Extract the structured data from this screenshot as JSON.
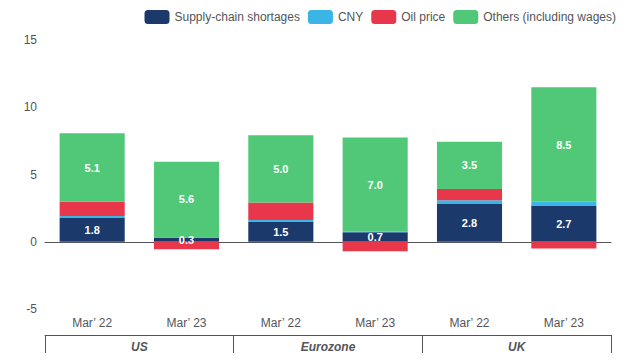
{
  "chart_data": {
    "type": "bar",
    "stacked": true,
    "categories": [
      "Mar’ 22",
      "Mar’ 23",
      "Mar’ 22",
      "Mar’ 23",
      "Mar’ 22",
      "Mar’ 23"
    ],
    "group_labels": [
      "US",
      "Eurozone",
      "UK"
    ],
    "series": [
      {
        "name": "Supply-chain shortages",
        "color": "#1b3a6b",
        "values": [
          1.8,
          0.3,
          1.5,
          0.7,
          2.8,
          2.7
        ],
        "data_labels": true
      },
      {
        "name": "CNY",
        "color": "#3ab5e5",
        "values": [
          0.12,
          0.05,
          0.12,
          0.05,
          0.28,
          0.28
        ]
      },
      {
        "name": "Oil price",
        "color": "#e8374a",
        "values": [
          1.05,
          -0.55,
          1.3,
          -0.7,
          0.85,
          -0.5
        ]
      },
      {
        "name": "Others (including wages)",
        "color": "#50c878",
        "values": [
          5.1,
          5.6,
          5.0,
          7.0,
          3.5,
          8.5
        ],
        "value_labels": [
          "5.1",
          "5.6",
          "5.0",
          "7.0",
          "3.5",
          "8.5"
        ],
        "data_labels": true
      }
    ],
    "ylim": [
      -5,
      15
    ],
    "yticks": [
      -5,
      0,
      5,
      10,
      15
    ],
    "grid": false,
    "legend": "upper right"
  }
}
